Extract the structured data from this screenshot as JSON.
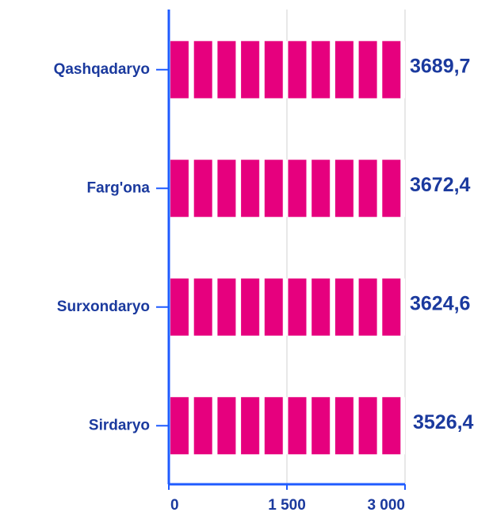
{
  "chart_data": {
    "type": "bar",
    "orientation": "horizontal",
    "categories": [
      "Qashqadaryo",
      "Farg'ona",
      "Surxondaryo",
      "Sirdaryo"
    ],
    "values": [
      3689.7,
      3672.4,
      3624.6,
      3526.4
    ],
    "value_labels": [
      "3689,7",
      "3672,4",
      "3624,6",
      "3526,4"
    ],
    "color": "#e6007e",
    "xlim": [
      0,
      3000
    ],
    "xticks": [
      0,
      {
        "value": 1500,
        "label": "1 500"
      },
      {
        "value": 3000,
        "label": "3 000"
      }
    ],
    "grid": true
  }
}
